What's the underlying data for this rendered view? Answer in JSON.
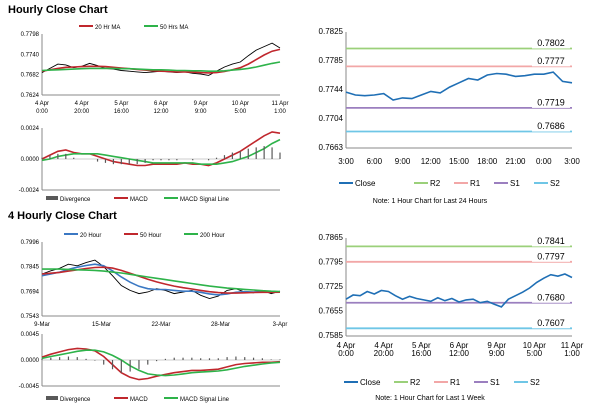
{
  "sections": {
    "hourly_title": "Hourly Close Chart",
    "four_hourly_title": "4 Hourly Close Chart"
  },
  "colors": {
    "price": "#000000",
    "ma_short": "#c0272d",
    "ma_long": "#2eb34a",
    "ma_mid": "#3b78c3",
    "close": "#1f6fb5",
    "r2": "#9bd07a",
    "r1": "#f2a7a7",
    "s1": "#9b7fbf",
    "s2": "#6fc6e6",
    "divergence": "#595959"
  },
  "chart_data": [
    {
      "id": "hourly_price",
      "type": "line",
      "legend": [
        "20 Hr MA",
        "50 Hrs MA"
      ],
      "x_ticks": [
        "4 Apr\n0:00",
        "4 Apr\n20:00",
        "5 Apr\n16:00",
        "6 Apr\n12:00",
        "9 Apr\n9:00",
        "10 Apr\n5:00",
        "11 Apr\n1:00"
      ],
      "y_ticks": [
        "0.7798",
        "0.7740",
        "0.7682",
        "0.7624"
      ],
      "ylim": [
        0.7624,
        0.7798
      ],
      "series": [
        {
          "name": "Close",
          "values": [
            0.7688,
            0.77,
            0.7712,
            0.771,
            0.7702,
            0.7706,
            0.7714,
            0.7708,
            0.77,
            0.7698,
            0.7694,
            0.7692,
            0.769,
            0.7688,
            0.769,
            0.7692,
            0.769,
            0.7688,
            0.769,
            0.7686,
            0.7684,
            0.768,
            0.7692,
            0.7704,
            0.7712,
            0.7718,
            0.7736,
            0.7752,
            0.7762,
            0.7772,
            0.7758
          ]
        },
        {
          "name": "20 Hr MA",
          "values": [
            0.7692,
            0.7696,
            0.77,
            0.7703,
            0.7704,
            0.7705,
            0.7706,
            0.7706,
            0.7705,
            0.7703,
            0.7701,
            0.7699,
            0.7697,
            0.7695,
            0.7693,
            0.7692,
            0.7691,
            0.769,
            0.769,
            0.7689,
            0.7688,
            0.7687,
            0.7688,
            0.7691,
            0.7696,
            0.7702,
            0.7712,
            0.7725,
            0.7738,
            0.7749,
            0.7754
          ]
        },
        {
          "name": "50 Hrs MA",
          "values": [
            0.7694,
            0.7695,
            0.7696,
            0.7697,
            0.7698,
            0.7699,
            0.77,
            0.77,
            0.77,
            0.77,
            0.7699,
            0.7699,
            0.7698,
            0.7697,
            0.7696,
            0.7696,
            0.7695,
            0.7694,
            0.7694,
            0.7693,
            0.7693,
            0.7692,
            0.7692,
            0.7693,
            0.7695,
            0.7697,
            0.77,
            0.7704,
            0.7709,
            0.7714,
            0.7718
          ]
        }
      ]
    },
    {
      "id": "hourly_macd",
      "type": "line",
      "legend": [
        "Divergence",
        "MACD",
        "MACD Signal Line"
      ],
      "y_ticks": [
        "0.0024",
        "0.0000",
        "-0.0024"
      ],
      "ylim": [
        -0.0024,
        0.0024
      ],
      "series": [
        {
          "name": "MACD",
          "values": [
            0.0,
            0.0003,
            0.0006,
            0.0007,
            0.0005,
            0.0004,
            0.0004,
            0.0002,
            0.0,
            -0.0002,
            -0.0003,
            -0.0004,
            -0.0005,
            -0.0005,
            -0.0004,
            -0.0004,
            -0.0004,
            -0.0004,
            -0.0003,
            -0.0004,
            -0.0004,
            -0.0005,
            -0.0003,
            0.0,
            0.0003,
            0.0006,
            0.001,
            0.0014,
            0.0018,
            0.0021,
            0.002
          ]
        },
        {
          "name": "MACD Signal Line",
          "values": [
            -0.0001,
            0.0,
            0.0002,
            0.0003,
            0.0004,
            0.0004,
            0.0004,
            0.0004,
            0.0003,
            0.0002,
            0.0001,
            0.0,
            -0.0001,
            -0.0002,
            -0.0003,
            -0.0003,
            -0.0003,
            -0.0003,
            -0.0003,
            -0.0003,
            -0.0004,
            -0.0004,
            -0.0004,
            -0.0003,
            -0.0002,
            0.0,
            0.0002,
            0.0005,
            0.0008,
            0.0012,
            0.0015
          ]
        },
        {
          "name": "Divergence",
          "values": [
            0.0001,
            0.0003,
            0.0004,
            0.0004,
            0.0001,
            0.0,
            0.0,
            -0.0002,
            -0.0003,
            -0.0004,
            -0.0004,
            -0.0004,
            -0.0004,
            -0.0003,
            -0.0001,
            -0.0001,
            -0.0001,
            -0.0001,
            0.0,
            -0.0001,
            0.0,
            -0.0001,
            0.0001,
            0.0003,
            0.0005,
            0.0006,
            0.0008,
            0.0009,
            0.001,
            0.0009,
            0.0005
          ]
        }
      ]
    },
    {
      "id": "hourly_levels",
      "type": "line",
      "legend": [
        "Close",
        "R2",
        "R1",
        "S1",
        "S2"
      ],
      "x_ticks": [
        "3:00",
        "6:00",
        "9:00",
        "12:00",
        "15:00",
        "18:00",
        "21:00",
        "0:00",
        "3:00"
      ],
      "y_ticks": [
        "0.7825",
        "0.7785",
        "0.7744",
        "0.7704",
        "0.7663"
      ],
      "ylim": [
        0.7663,
        0.7825
      ],
      "levels": [
        {
          "name": "R2",
          "value": 0.7802,
          "label": "0.7802"
        },
        {
          "name": "R1",
          "value": 0.7777,
          "label": "0.7777"
        },
        {
          "name": "S1",
          "value": 0.7719,
          "label": "0.7719"
        },
        {
          "name": "S2",
          "value": 0.7686,
          "label": "0.7686"
        }
      ],
      "series": [
        {
          "name": "Close",
          "values": [
            0.7741,
            0.7737,
            0.7736,
            0.7737,
            0.7739,
            0.773,
            0.7733,
            0.7732,
            0.7737,
            0.7742,
            0.774,
            0.7748,
            0.7754,
            0.776,
            0.7758,
            0.7765,
            0.7767,
            0.7766,
            0.7763,
            0.7764,
            0.7766,
            0.7766,
            0.7769,
            0.7756,
            0.7754
          ]
        }
      ],
      "note": "Note: 1 Hour Chart for Last 24 Hours"
    },
    {
      "id": "four_hourly_price",
      "type": "line",
      "legend": [
        "20 Hour",
        "50 Hour",
        "200 Hour"
      ],
      "x_ticks": [
        "9-Mar",
        "15-Mar",
        "22-Mar",
        "28-Mar",
        "3-Apr"
      ],
      "y_ticks": [
        "0.7996",
        "0.7845",
        "0.7694",
        "0.7543"
      ],
      "ylim": [
        0.7543,
        0.7996
      ],
      "series": [
        {
          "name": "Close",
          "values": [
            0.78,
            0.782,
            0.7835,
            0.786,
            0.785,
            0.787,
            0.7885,
            0.7845,
            0.779,
            0.773,
            0.77,
            0.768,
            0.769,
            0.771,
            0.77,
            0.768,
            0.769,
            0.77,
            0.767,
            0.765,
            0.7665,
            0.77,
            0.771,
            0.769,
            0.7685,
            0.77,
            0.768,
            0.7695
          ]
        },
        {
          "name": "20 Hour",
          "values": [
            0.779,
            0.78,
            0.7812,
            0.7828,
            0.7842,
            0.7852,
            0.786,
            0.785,
            0.782,
            0.7782,
            0.775,
            0.7725,
            0.771,
            0.7705,
            0.7705,
            0.77,
            0.7695,
            0.7695,
            0.7688,
            0.7678,
            0.7672,
            0.7678,
            0.7688,
            0.7692,
            0.769,
            0.7692,
            0.769,
            0.769
          ]
        },
        {
          "name": "50 Hour",
          "values": [
            0.78,
            0.7805,
            0.781,
            0.7818,
            0.7826,
            0.7834,
            0.784,
            0.7842,
            0.7836,
            0.7822,
            0.7805,
            0.7786,
            0.7768,
            0.7752,
            0.7738,
            0.7726,
            0.7716,
            0.7708,
            0.77,
            0.7692,
            0.7686,
            0.7683,
            0.7683,
            0.7685,
            0.7687,
            0.7688,
            0.7688,
            0.7689
          ]
        },
        {
          "name": "200 Hour",
          "values": [
            0.783,
            0.783,
            0.783,
            0.7828,
            0.7826,
            0.7824,
            0.7822,
            0.7818,
            0.7812,
            0.7806,
            0.7798,
            0.779,
            0.7782,
            0.7774,
            0.7766,
            0.7758,
            0.775,
            0.7742,
            0.7734,
            0.7726,
            0.772,
            0.7714,
            0.771,
            0.7706,
            0.7702,
            0.7698,
            0.7695,
            0.7693
          ]
        }
      ]
    },
    {
      "id": "four_hourly_macd",
      "type": "line",
      "legend": [
        "Divergence",
        "MACD",
        "MACD Signal Line"
      ],
      "y_ticks": [
        "0.0045",
        "0.0000",
        "-0.0045"
      ],
      "ylim": [
        -0.0045,
        0.0045
      ],
      "series": [
        {
          "name": "MACD",
          "values": [
            0.0005,
            0.001,
            0.0014,
            0.0018,
            0.002,
            0.0019,
            0.0016,
            0.0006,
            -0.0008,
            -0.0022,
            -0.003,
            -0.0034,
            -0.0032,
            -0.0028,
            -0.0025,
            -0.0022,
            -0.002,
            -0.0018,
            -0.0018,
            -0.0017,
            -0.0016,
            -0.0012,
            -0.0008,
            -0.0006,
            -0.0005,
            -0.0004,
            -0.0004,
            -0.0003
          ]
        },
        {
          "name": "MACD Signal Line",
          "values": [
            0.0003,
            0.0006,
            0.0009,
            0.0012,
            0.0015,
            0.0017,
            0.0017,
            0.0014,
            0.0008,
            0.0,
            -0.001,
            -0.0018,
            -0.0024,
            -0.0026,
            -0.0027,
            -0.0026,
            -0.0024,
            -0.0022,
            -0.0021,
            -0.002,
            -0.0019,
            -0.0017,
            -0.0014,
            -0.0011,
            -0.0009,
            -0.0007,
            -0.0005,
            -0.0004
          ]
        },
        {
          "name": "Divergence",
          "values": [
            0.0002,
            0.0004,
            0.0005,
            0.0006,
            0.0005,
            0.0002,
            -0.0001,
            -0.0008,
            -0.0016,
            -0.0022,
            -0.002,
            -0.0016,
            -0.0008,
            -0.0002,
            0.0002,
            0.0004,
            0.0004,
            0.0004,
            0.0003,
            0.0003,
            0.0003,
            0.0005,
            0.0006,
            0.0005,
            0.0004,
            0.0003,
            0.0001,
            0.0001
          ]
        }
      ]
    },
    {
      "id": "four_hourly_levels",
      "type": "line",
      "legend": [
        "Close",
        "R2",
        "R1",
        "S1",
        "S2"
      ],
      "x_ticks": [
        "4 Apr\n0:00",
        "4 Apr\n20:00",
        "5 Apr\n16:00",
        "6 Apr\n12:00",
        "9 Apr\n9:00",
        "10 Apr\n5:00",
        "11 Apr\n1:00"
      ],
      "y_ticks": [
        "0.7865",
        "0.7795",
        "0.7725",
        "0.7655",
        "0.7585"
      ],
      "ylim": [
        0.7585,
        0.7865
      ],
      "levels": [
        {
          "name": "R2",
          "value": 0.7841,
          "label": "0.7841"
        },
        {
          "name": "R1",
          "value": 0.7797,
          "label": "0.7797"
        },
        {
          "name": "S1",
          "value": 0.768,
          "label": "0.7680"
        },
        {
          "name": "S2",
          "value": 0.7607,
          "label": "0.7607"
        }
      ],
      "series": [
        {
          "name": "Close",
          "values": [
            0.769,
            0.7702,
            0.77,
            0.7712,
            0.7705,
            0.7715,
            0.7712,
            0.77,
            0.769,
            0.7698,
            0.7692,
            0.7688,
            0.7684,
            0.7694,
            0.7686,
            0.7692,
            0.7682,
            0.7688,
            0.769,
            0.768,
            0.7684,
            0.7676,
            0.7668,
            0.769,
            0.77,
            0.771,
            0.7722,
            0.7738,
            0.775,
            0.776,
            0.7756,
            0.7762,
            0.7752
          ]
        }
      ],
      "note": "Note: 1 Hour Chart for Last 1 Week"
    }
  ]
}
